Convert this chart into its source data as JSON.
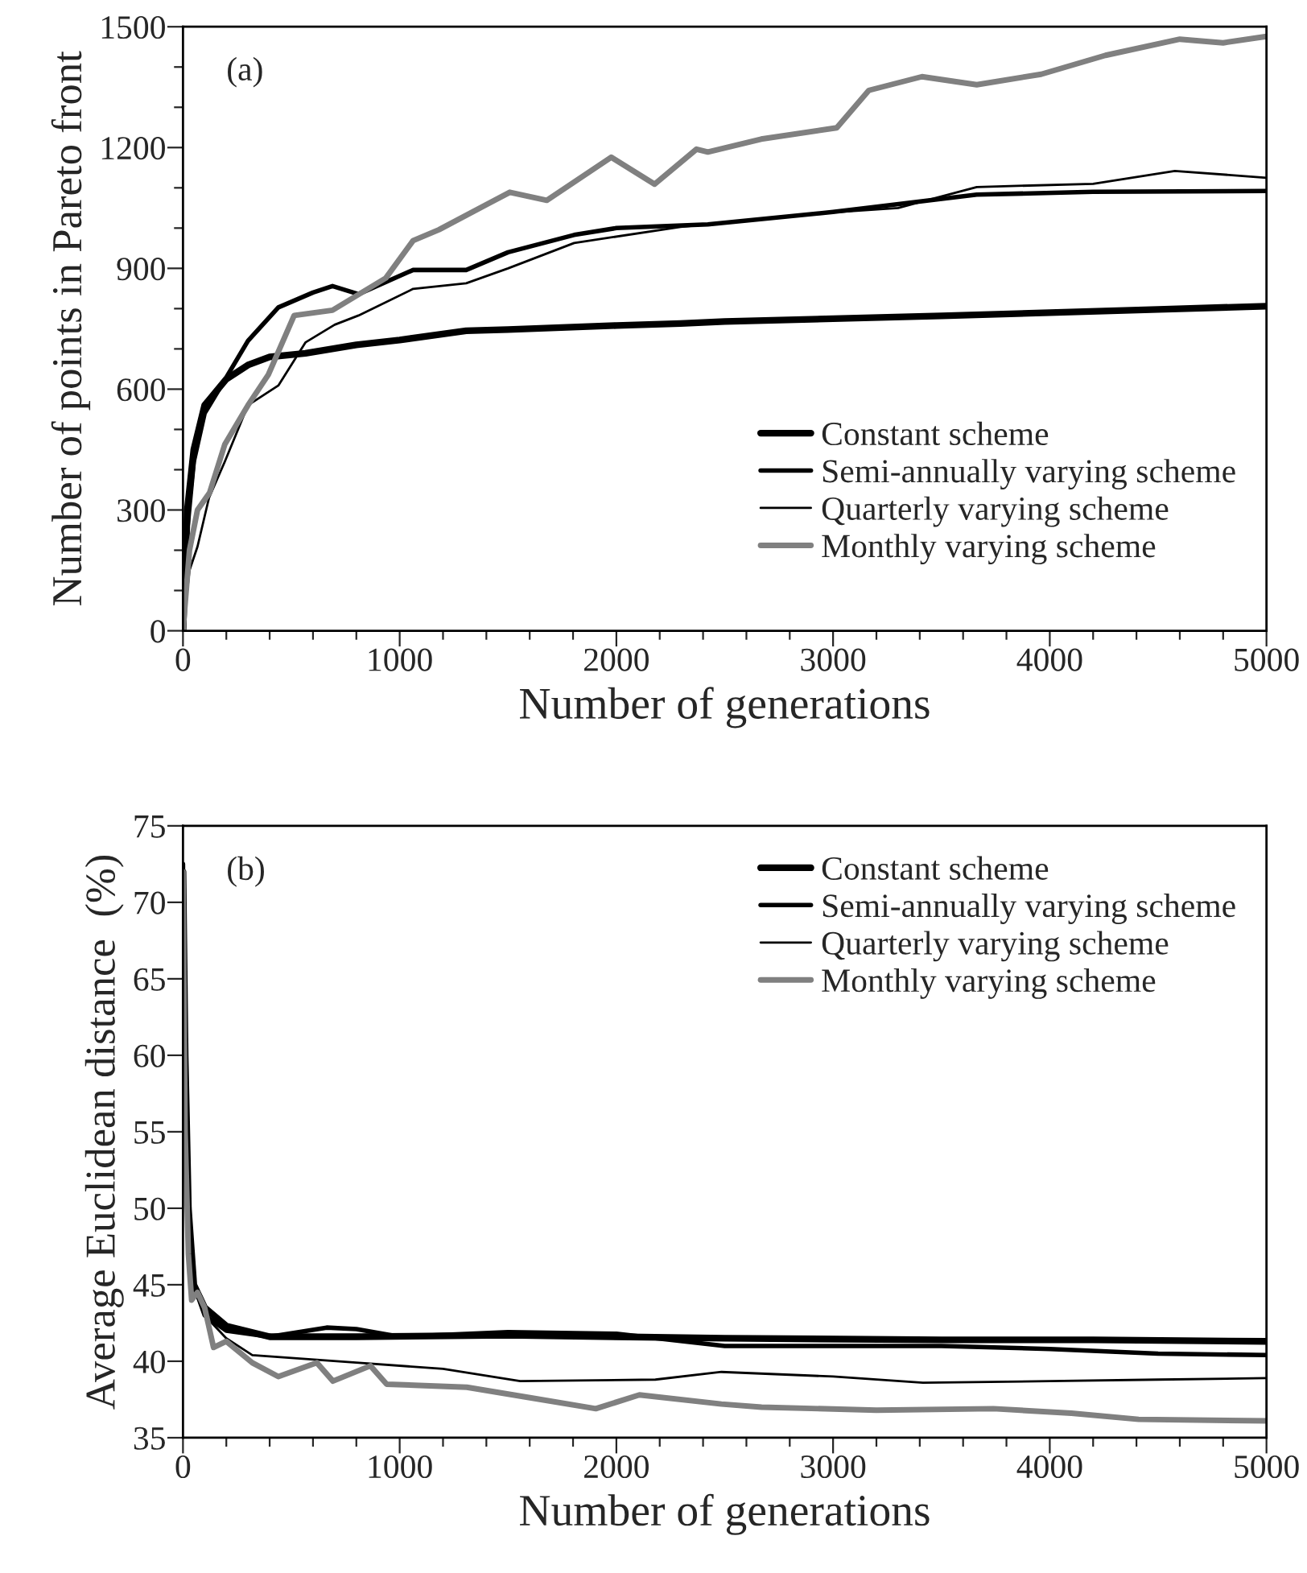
{
  "chart_data": [
    {
      "type": "line",
      "xlabel": "Number of generations",
      "ylabel": "Number of points in Pareto front",
      "annotations": [
        "(a)"
      ],
      "legend": "bottom right",
      "grid": false,
      "marker": "none",
      "line_style": "solid",
      "xlim": [
        0,
        5000
      ],
      "ylim": [
        0,
        1500
      ],
      "xticks": [
        0,
        {
          "value": 200,
          "label": null
        },
        {
          "value": 400,
          "label": null
        },
        {
          "value": 600,
          "label": null
        },
        {
          "value": 800,
          "label": null
        },
        1000,
        {
          "value": 1200,
          "label": null
        },
        {
          "value": 1400,
          "label": null
        },
        {
          "value": 1600,
          "label": null
        },
        {
          "value": 1800,
          "label": null
        },
        2000,
        {
          "value": 2200,
          "label": null
        },
        {
          "value": 2400,
          "label": null
        },
        {
          "value": 2600,
          "label": null
        },
        {
          "value": 2800,
          "label": null
        },
        3000,
        {
          "value": 3200,
          "label": null
        },
        {
          "value": 3400,
          "label": null
        },
        {
          "value": 3600,
          "label": null
        },
        {
          "value": 3800,
          "label": null
        },
        4000,
        {
          "value": 4200,
          "label": null
        },
        {
          "value": 4400,
          "label": null
        },
        {
          "value": 4600,
          "label": null
        },
        {
          "value": 4800,
          "label": null
        },
        5000
      ],
      "yticks": [
        0,
        {
          "value": 100,
          "label": null
        },
        {
          "value": 200,
          "label": null
        },
        300,
        {
          "value": 400,
          "label": null
        },
        {
          "value": 500,
          "label": null
        },
        600,
        {
          "value": 700,
          "label": null
        },
        {
          "value": 800,
          "label": null
        },
        900,
        {
          "value": 1000,
          "label": null
        },
        {
          "value": 1100,
          "label": null
        },
        1200,
        {
          "value": 1300,
          "label": null
        },
        {
          "value": 1400,
          "label": null
        },
        1500
      ],
      "series": [
        {
          "name": "Constant scheme",
          "color": "#000000",
          "x": [
            0,
            20,
            50,
            100,
            200,
            300,
            400,
            565,
            800,
            1000,
            1307,
            1500,
            2000,
            2296,
            2500,
            3000,
            3500,
            4000,
            4500,
            5000
          ],
          "values": [
            0,
            300,
            450,
            560,
            625,
            660,
            680,
            689,
            710,
            722,
            745,
            748,
            758,
            763,
            768,
            775,
            782,
            790,
            798,
            806
          ]
        },
        {
          "name": "Semi-annually varying scheme",
          "color": "#000000",
          "x": [
            0,
            20,
            50,
            100,
            193,
            300,
            440,
            600,
            690,
            810,
            1062,
            1307,
            1500,
            1805,
            2000,
            2422,
            3000,
            3663,
            4200,
            5000
          ],
          "values": [
            0,
            250,
            420,
            540,
            623,
            720,
            803,
            840,
            856,
            836,
            896,
            896,
            940,
            983,
            1000,
            1009,
            1040,
            1083,
            1090,
            1092
          ]
        },
        {
          "name": "Quarterly varying scheme",
          "color": "#000000",
          "x": [
            0,
            30,
            67,
            120,
            193,
            300,
            440,
            565,
            700,
            810,
            1062,
            1307,
            1500,
            1805,
            2296,
            2920,
            3300,
            3663,
            4200,
            4577,
            5000
          ],
          "values": [
            0,
            150,
            209,
            330,
            420,
            560,
            609,
            716,
            760,
            783,
            849,
            863,
            900,
            963,
            1003,
            1036,
            1050,
            1102,
            1110,
            1142,
            1125
          ]
        },
        {
          "name": "Monthly varying scheme",
          "color": "#808080",
          "x": [
            0,
            30,
            67,
            123,
            193,
            300,
            394,
            513,
            690,
            936,
            1062,
            1181,
            1508,
            1679,
            1976,
            2176,
            2370,
            2422,
            2668,
            3017,
            3165,
            3410,
            3663,
            3960,
            4257,
            4600,
            4800,
            5000
          ],
          "values": [
            0,
            200,
            300,
            343,
            463,
            560,
            636,
            783,
            796,
            876,
            969,
            996,
            1089,
            1069,
            1176,
            1109,
            1196,
            1189,
            1221,
            1249,
            1342,
            1376,
            1356,
            1382,
            1429,
            1469,
            1460,
            1476
          ]
        }
      ]
    },
    {
      "type": "line",
      "xlabel": "Number of generations",
      "ylabel": "Average Euclidean distance  (%)",
      "annotations": [
        "(b)"
      ],
      "legend": "top right",
      "grid": false,
      "marker": "none",
      "line_style": "solid",
      "xlim": [
        0,
        5000
      ],
      "ylim": [
        35,
        75
      ],
      "xticks": [
        0,
        {
          "value": 200,
          "label": null
        },
        {
          "value": 400,
          "label": null
        },
        {
          "value": 600,
          "label": null
        },
        {
          "value": 800,
          "label": null
        },
        1000,
        {
          "value": 1200,
          "label": null
        },
        {
          "value": 1400,
          "label": null
        },
        {
          "value": 1600,
          "label": null
        },
        {
          "value": 1800,
          "label": null
        },
        2000,
        {
          "value": 2200,
          "label": null
        },
        {
          "value": 2400,
          "label": null
        },
        {
          "value": 2600,
          "label": null
        },
        {
          "value": 2800,
          "label": null
        },
        3000,
        {
          "value": 3200,
          "label": null
        },
        {
          "value": 3400,
          "label": null
        },
        {
          "value": 3600,
          "label": null
        },
        {
          "value": 3800,
          "label": null
        },
        4000,
        {
          "value": 4200,
          "label": null
        },
        {
          "value": 4400,
          "label": null
        },
        {
          "value": 4600,
          "label": null
        },
        {
          "value": 4800,
          "label": null
        },
        5000
      ],
      "yticks": [
        35,
        40,
        45,
        50,
        55,
        60,
        65,
        70,
        75
      ],
      "series": [
        {
          "name": "Constant scheme",
          "color": "#000000",
          "x": [
            0,
            10,
            25,
            50,
            100,
            200,
            400,
            800,
            1500,
            2500,
            3500,
            4200,
            5000
          ],
          "values": [
            72,
            60,
            50,
            45,
            43.5,
            42.3,
            41.6,
            41.6,
            41.7,
            41.5,
            41.4,
            41.4,
            41.3
          ]
        },
        {
          "name": "Semi-annually varying scheme",
          "color": "#000000",
          "x": [
            0,
            10,
            25,
            50,
            100,
            200,
            400,
            663,
            800,
            1000,
            1500,
            2000,
            2500,
            3000,
            3500,
            4000,
            4500,
            5000
          ],
          "values": [
            72.5,
            58,
            49,
            45,
            43,
            42,
            41.6,
            42.2,
            42.1,
            41.6,
            41.9,
            41.8,
            41.0,
            41.0,
            41.0,
            40.8,
            40.5,
            40.4
          ]
        },
        {
          "name": "Quarterly varying scheme",
          "color": "#000000",
          "x": [
            0,
            10,
            25,
            50,
            100,
            200,
            320,
            812,
            1200,
            1556,
            2180,
            2485,
            3000,
            3415,
            4000,
            4500,
            5000
          ],
          "values": [
            72,
            57,
            49,
            45,
            43,
            41.5,
            40.4,
            39.9,
            39.5,
            38.7,
            38.8,
            39.3,
            39.0,
            38.6,
            38.7,
            38.8,
            38.9
          ]
        },
        {
          "name": "Monthly varying scheme",
          "color": "#808080",
          "x": [
            0,
            10,
            25,
            40,
            67,
            100,
            141,
            200,
            320,
            440,
            618,
            692,
            865,
            940,
            1310,
            1607,
            1905,
            2106,
            2485,
            2670,
            3200,
            3740,
            4100,
            4410,
            5000
          ],
          "values": [
            72,
            55,
            47,
            44,
            44.5,
            43.5,
            40.9,
            41.3,
            39.9,
            39.0,
            39.9,
            38.7,
            39.7,
            38.5,
            38.3,
            37.6,
            36.9,
            37.8,
            37.2,
            37.0,
            36.8,
            36.9,
            36.6,
            36.2,
            36.1
          ]
        }
      ]
    }
  ]
}
